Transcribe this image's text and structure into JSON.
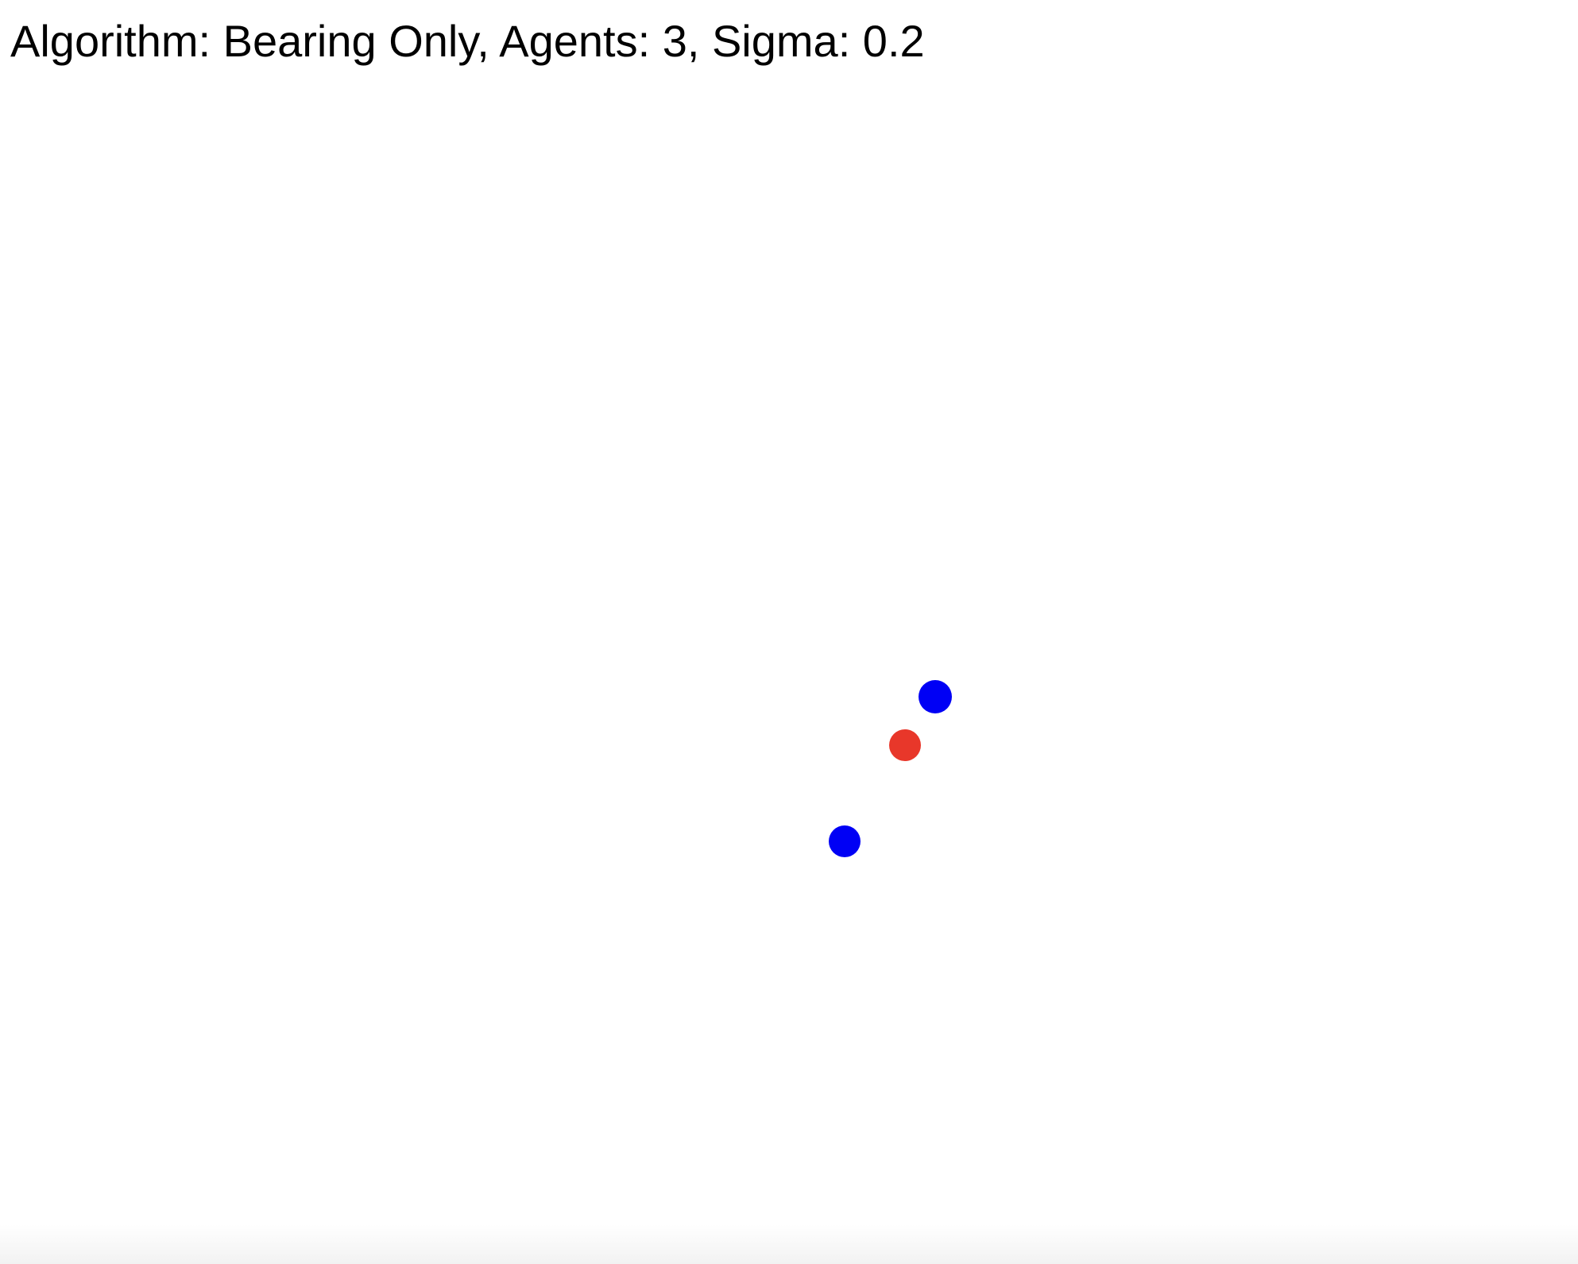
{
  "header": {
    "status_text": "Algorithm: Bearing Only, Agents: 3, Sigma: 0.2"
  },
  "colors": {
    "background": "#ffffff",
    "agent": "#0000f5",
    "target": "#e8372a",
    "text": "#000000"
  }
}
